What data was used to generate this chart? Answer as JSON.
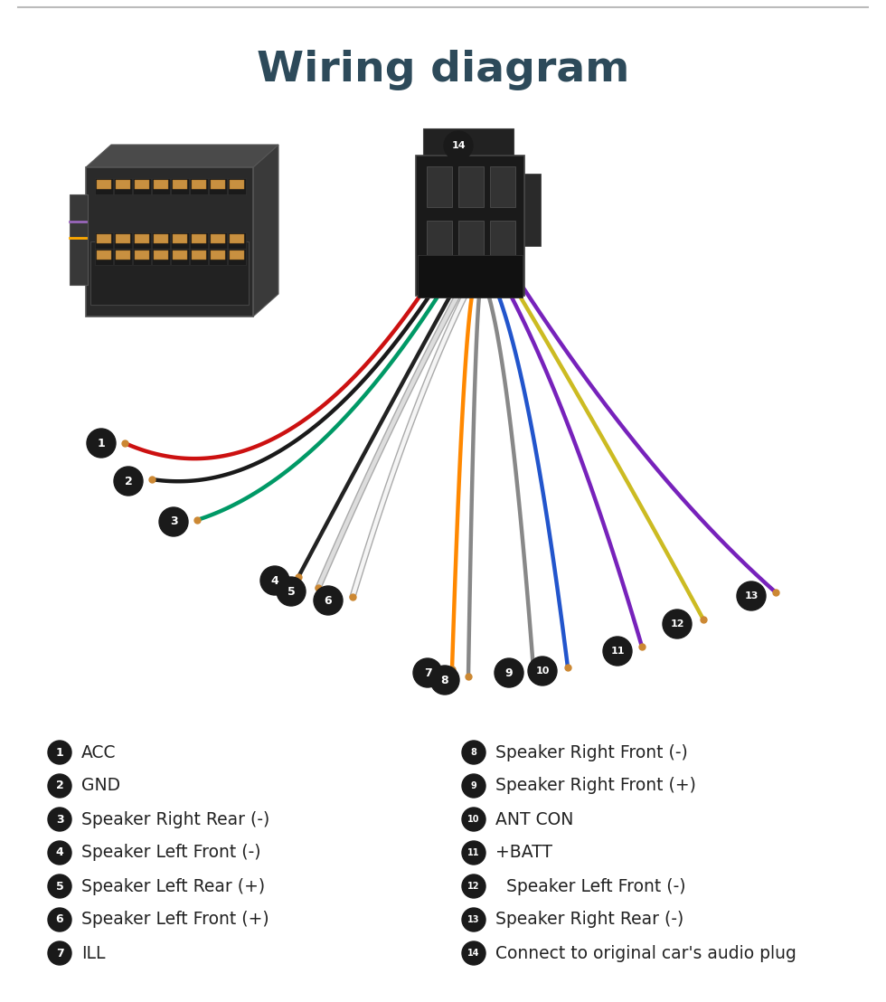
{
  "title": "Wiring diagram",
  "title_color": "#2d4a5a",
  "title_fontsize": 34,
  "title_fontweight": "bold",
  "background_color": "#ffffff",
  "wire_linewidth": 3.2,
  "label_entries_left": [
    {
      "num": 1,
      "text": "ACC"
    },
    {
      "num": 2,
      "text": "GND"
    },
    {
      "num": 3,
      "text": "Speaker Right Rear (-)"
    },
    {
      "num": 4,
      "text": "Speaker Left Front (-)"
    },
    {
      "num": 5,
      "text": "Speaker Left Rear (+)"
    },
    {
      "num": 6,
      "text": "Speaker Left Front (+)"
    },
    {
      "num": 7,
      "text": "ILL"
    }
  ],
  "label_entries_right": [
    {
      "num": 8,
      "text": "Speaker Right Front (-)"
    },
    {
      "num": 9,
      "text": "Speaker Right Front (+)"
    },
    {
      "num": 10,
      "text": "ANT CON"
    },
    {
      "num": 11,
      "text": "+BATT"
    },
    {
      "num": 12,
      "text": "  Speaker Left Front (-)"
    },
    {
      "num": 13,
      "text": "Speaker Right Rear (-)"
    },
    {
      "num": 14,
      "text": "Connect to original car's audio plug"
    }
  ],
  "badge_color": "#1a1a1a",
  "label_fontsize": 13.5
}
